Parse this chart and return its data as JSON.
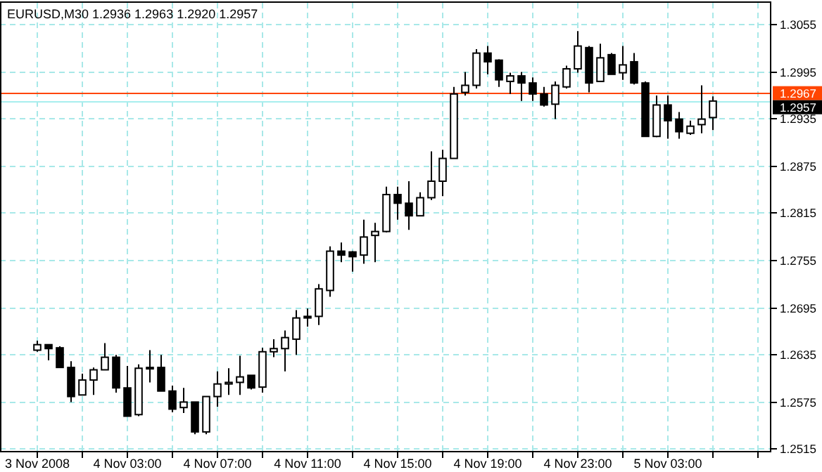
{
  "chart_data": {
    "type": "candlestick",
    "title": "EURUSD,M30 1.2936 1.2963 1.2920 1.2957",
    "categories": [
      "3 Nov 2008",
      null,
      null,
      null,
      null,
      null,
      null,
      null,
      "4 Nov 03:00",
      null,
      null,
      null,
      null,
      null,
      null,
      null,
      "4 Nov 07:00",
      null,
      null,
      null,
      null,
      null,
      null,
      null,
      "4 Nov 11:00",
      null,
      null,
      null,
      null,
      null,
      null,
      null,
      "4 Nov 15:00",
      null,
      null,
      null,
      null,
      null,
      null,
      null,
      "4 Nov 19:00",
      null,
      null,
      null,
      null,
      null,
      null,
      null,
      "4 Nov 23:00",
      null,
      null,
      null,
      null,
      null,
      null,
      null,
      "5 Nov 03:00",
      null,
      null,
      null,
      null
    ],
    "ohlc": [
      [
        1.264,
        1.2652,
        1.2638,
        1.2647
      ],
      [
        1.2647,
        1.2647,
        1.2627,
        1.2642
      ],
      [
        1.2643,
        1.2645,
        1.2618,
        1.2618
      ],
      [
        1.2618,
        1.2626,
        1.2574,
        1.2581
      ],
      [
        1.2583,
        1.261,
        1.2583,
        1.2602
      ],
      [
        1.2602,
        1.2618,
        1.2583,
        1.2615
      ],
      [
        1.2615,
        1.2649,
        1.2615,
        1.2631
      ],
      [
        1.2631,
        1.2634,
        1.2586,
        1.2592
      ],
      [
        1.2592,
        1.262,
        1.2556,
        1.2556
      ],
      [
        1.2558,
        1.2622,
        1.2556,
        1.2617
      ],
      [
        1.2618,
        1.264,
        1.2599,
        1.2617
      ],
      [
        1.2618,
        1.2634,
        1.2588,
        1.2588
      ],
      [
        1.2588,
        1.2595,
        1.2561,
        1.2565
      ],
      [
        1.2567,
        1.2592,
        1.256,
        1.2574
      ],
      [
        1.2574,
        1.2574,
        1.2533,
        1.2536
      ],
      [
        1.2536,
        1.2581,
        1.2533,
        1.2581
      ],
      [
        1.2581,
        1.2613,
        1.2568,
        1.2597
      ],
      [
        1.2597,
        1.2617,
        1.2583,
        1.2599
      ],
      [
        1.2599,
        1.2633,
        1.2583,
        1.2606
      ],
      [
        1.2608,
        1.2608,
        1.259,
        1.2592
      ],
      [
        1.2593,
        1.2643,
        1.2586,
        1.2638
      ],
      [
        1.2638,
        1.2654,
        1.2631,
        1.2642
      ],
      [
        1.2642,
        1.2665,
        1.2613,
        1.2656
      ],
      [
        1.2654,
        1.2691,
        1.2634,
        1.2681
      ],
      [
        1.2683,
        1.2693,
        1.267,
        1.2681
      ],
      [
        1.2683,
        1.2724,
        1.2672,
        1.2718
      ],
      [
        1.2716,
        1.2772,
        1.2708,
        1.2766
      ],
      [
        1.2766,
        1.2777,
        1.2752,
        1.2761
      ],
      [
        1.2765,
        1.2766,
        1.274,
        1.2759
      ],
      [
        1.2761,
        1.2806,
        1.275,
        1.2784
      ],
      [
        1.2786,
        1.2802,
        1.2752,
        1.2791
      ],
      [
        1.2791,
        1.2848,
        1.279,
        1.2838
      ],
      [
        1.2838,
        1.2848,
        1.2806,
        1.2827
      ],
      [
        1.2827,
        1.2855,
        1.2793,
        1.2811
      ],
      [
        1.2811,
        1.2841,
        1.2811,
        1.2834
      ],
      [
        1.2834,
        1.2893,
        1.2831,
        1.2855
      ],
      [
        1.2855,
        1.2895,
        1.2836,
        1.2884
      ],
      [
        1.2884,
        1.2975,
        1.2884,
        1.2966
      ],
      [
        1.2968,
        1.2994,
        1.2964,
        1.2977
      ],
      [
        1.2977,
        1.3023,
        1.2973,
        1.3018
      ],
      [
        1.3018,
        1.3027,
        1.2991,
        1.3007
      ],
      [
        1.3009,
        1.301,
        1.2975,
        1.2984
      ],
      [
        1.2982,
        1.2993,
        1.2966,
        1.2989
      ],
      [
        1.2989,
        1.2994,
        1.2957,
        1.298
      ],
      [
        1.298,
        1.2987,
        1.2957,
        1.2966
      ],
      [
        1.2966,
        1.2975,
        1.295,
        1.2952
      ],
      [
        1.2953,
        1.2982,
        1.2934,
        1.2977
      ],
      [
        1.2975,
        1.3002,
        1.2973,
        1.2998
      ],
      [
        1.2998,
        1.3046,
        1.2993,
        1.3027
      ],
      [
        1.3025,
        1.3027,
        1.2968,
        1.298
      ],
      [
        1.2982,
        1.303,
        1.2982,
        1.3012
      ],
      [
        1.3016,
        1.3018,
        1.2991,
        1.2991
      ],
      [
        1.2993,
        1.3027,
        1.2984,
        1.3003
      ],
      [
        1.3007,
        1.3018,
        1.2978,
        1.298
      ],
      [
        1.298,
        1.2982,
        1.2912,
        1.2912
      ],
      [
        1.2912,
        1.2964,
        1.2911,
        1.2952
      ],
      [
        1.2952,
        1.2964,
        1.2909,
        1.2932
      ],
      [
        1.2934,
        1.2943,
        1.2909,
        1.2918
      ],
      [
        1.2916,
        1.2932,
        1.2914,
        1.2925
      ],
      [
        1.2927,
        1.2977,
        1.2916,
        1.2934
      ],
      [
        1.2936,
        1.2963,
        1.292,
        1.2957
      ]
    ],
    "ylim": [
      1.251,
      1.3082
    ],
    "yticks": [
      1.2515,
      1.2575,
      1.2635,
      1.2695,
      1.2755,
      1.2815,
      1.2875,
      1.2935,
      1.2995,
      1.3055
    ],
    "grid": true,
    "ref_lines": [
      {
        "axis": "y",
        "value": 1.2967,
        "label": "1.2967",
        "color": "#ff4500"
      },
      {
        "axis": "y",
        "value": 1.2957,
        "label": "1.2957",
        "color": "#a8eeee"
      }
    ]
  }
}
